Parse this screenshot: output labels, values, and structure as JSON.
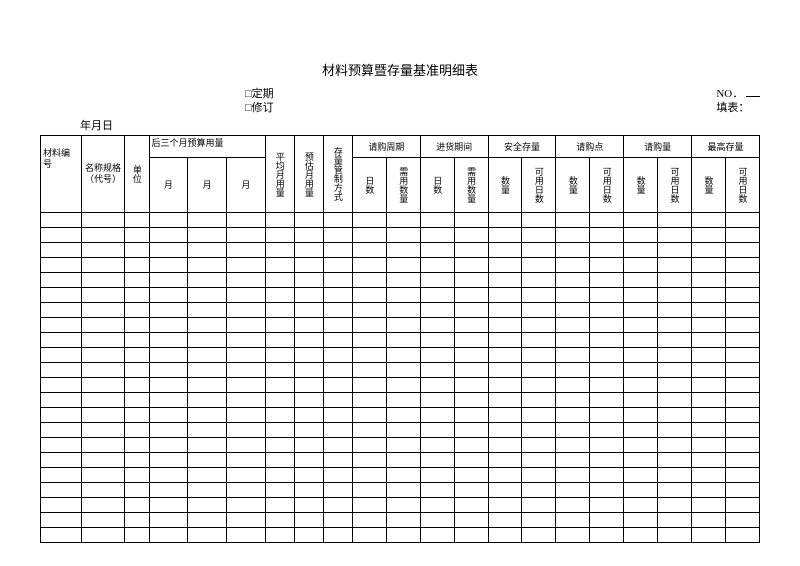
{
  "title": "材料预算暨存量基准明细表",
  "meta": {
    "opt1": "□定期",
    "opt2": "□修订",
    "no_label": "NO．",
    "filler_label": "填表："
  },
  "date_label": "年月日",
  "headers": {
    "col1": "材料编号",
    "col2": "名称规格（代号）",
    "col3": "单位",
    "group1": "后三个月预算用量",
    "g1_m1": "月",
    "g1_m2": "月",
    "g1_m3": "月",
    "col7": "平均月用量",
    "col8": "预估月用量",
    "col9": "存量管制方式",
    "group2": "请购周期",
    "g2_c1": "日数",
    "g2_c2": "需用数量",
    "group3": "进货期间",
    "g3_c1": "日数",
    "g3_c2": "需用数量",
    "group4": "安全存量",
    "g4_c1": "数量",
    "g4_c2": "可用日数",
    "group5": "请购点",
    "g5_c1": "数量",
    "g5_c2": "可用日数",
    "group6": "请购量",
    "g6_c1": "数量",
    "g6_c2": "可用日数",
    "group7": "最高存量",
    "g7_c1": "数量",
    "g7_c2": "可用日数"
  },
  "body_rows": 22,
  "colors": {
    "border": "#000000",
    "background": "#ffffff",
    "text": "#000000"
  }
}
